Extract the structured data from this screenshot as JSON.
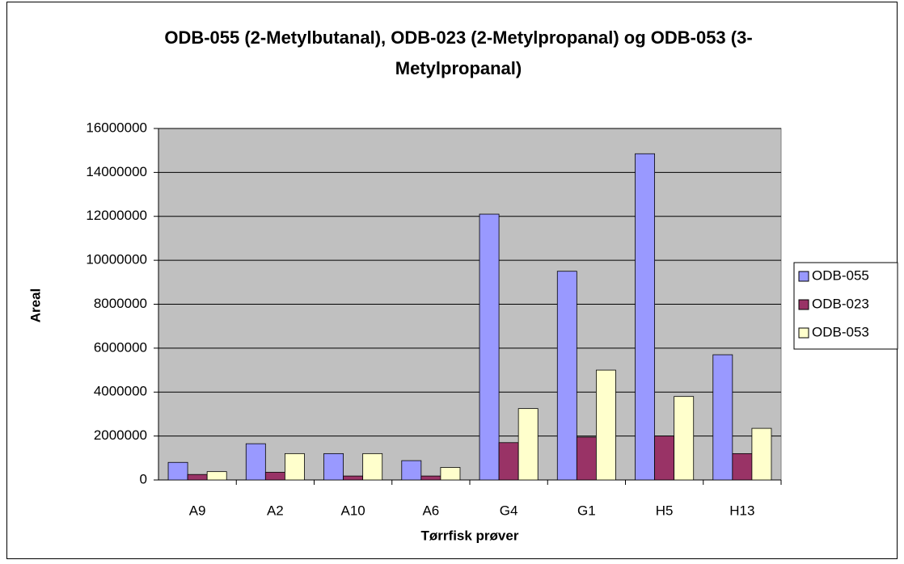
{
  "chart_data": {
    "type": "bar",
    "title": "ODB-055 (2-Metylbutanal), ODB-023 (2-Metylpropanal) og ODB-053 (3-Metylpropanal)",
    "x_label": "Tørrfisk prøver",
    "y_label": "Areal",
    "categories": [
      "A9",
      "A2",
      "A10",
      "A6",
      "G4",
      "G1",
      "H5",
      "H13"
    ],
    "series": [
      {
        "name": "ODB-055",
        "color": "#9999ff",
        "values": [
          800000,
          1650000,
          1200000,
          880000,
          12100000,
          9500000,
          14850000,
          5700000
        ]
      },
      {
        "name": "ODB-023",
        "color": "#993366",
        "values": [
          250000,
          350000,
          180000,
          180000,
          1700000,
          1950000,
          2000000,
          1200000
        ]
      },
      {
        "name": "ODB-053",
        "color": "#ffffcc",
        "values": [
          380000,
          1200000,
          1200000,
          570000,
          3250000,
          5000000,
          3800000,
          2350000
        ]
      }
    ],
    "ylim": [
      0,
      16000000
    ],
    "yticks": [
      0,
      2000000,
      4000000,
      6000000,
      8000000,
      10000000,
      12000000,
      14000000,
      16000000
    ],
    "grid": true,
    "plot_background": "#c0c0c0",
    "legend_position": "right"
  }
}
